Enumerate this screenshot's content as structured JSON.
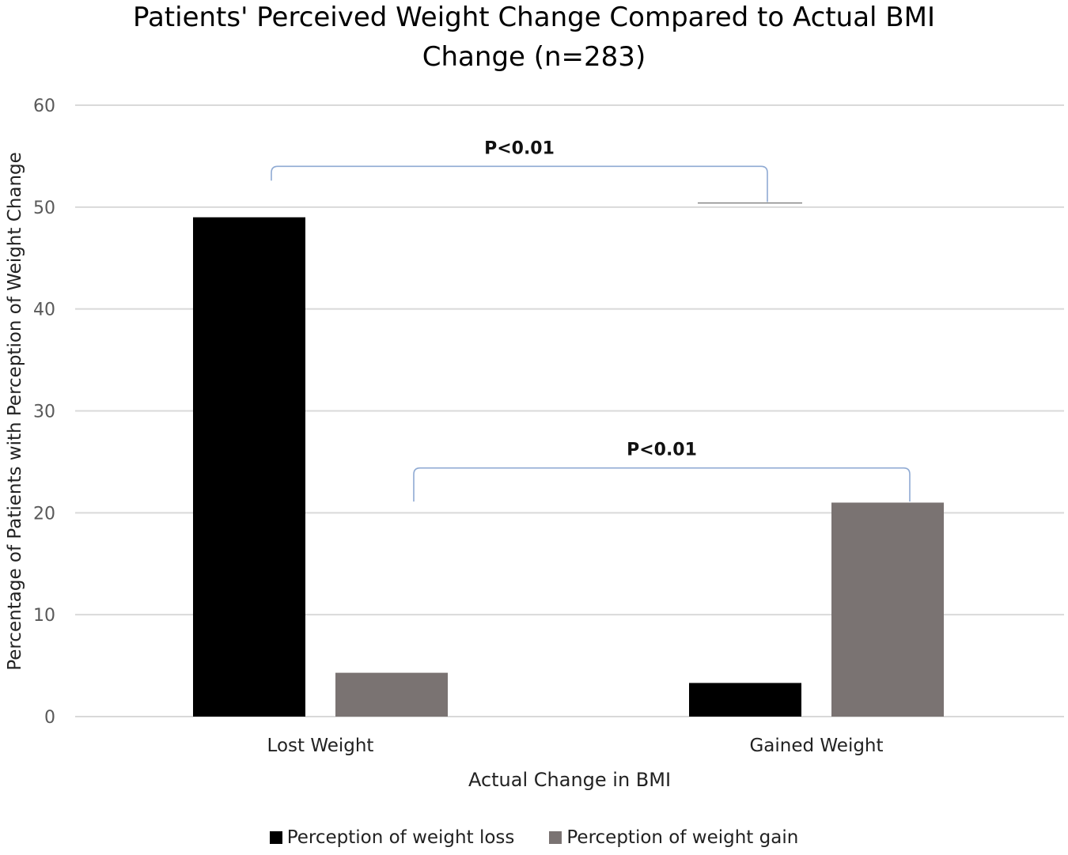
{
  "chart_data": {
    "type": "bar",
    "title_lines": [
      "Patients' Perceived Weight Change Compared to Actual BMI",
      "Change (n=283)"
    ],
    "xlabel": "Actual Change in BMI",
    "ylabel": "Percentage of Patients with Perception of Weight Change",
    "categories": [
      "Lost Weight",
      "Gained Weight"
    ],
    "ylim": [
      0,
      60
    ],
    "yticks": [
      0,
      10,
      20,
      30,
      40,
      50,
      60
    ],
    "series": [
      {
        "name": "Perception of weight loss",
        "color": "#000000",
        "values": [
          49,
          3.3
        ]
      },
      {
        "name": "Perception of weight gain",
        "color": "#7a7372",
        "values": [
          4.3,
          21
        ]
      }
    ],
    "annotations": [
      {
        "text": "P<0.01",
        "from": "Lost Weight / Perception of weight loss",
        "to": "Gained Weight / Perception of weight loss",
        "bracket_level": 54
      },
      {
        "text": "P<0.01",
        "from": "Lost Weight / Perception of weight gain",
        "to": "Gained Weight / Perception of weight gain",
        "bracket_level": 24.4
      }
    ],
    "grid": true,
    "legend_position": "bottom"
  },
  "colors": {
    "grid": "#d9d9d9",
    "bracket": "#8faad3",
    "axis_text": "#595959"
  }
}
